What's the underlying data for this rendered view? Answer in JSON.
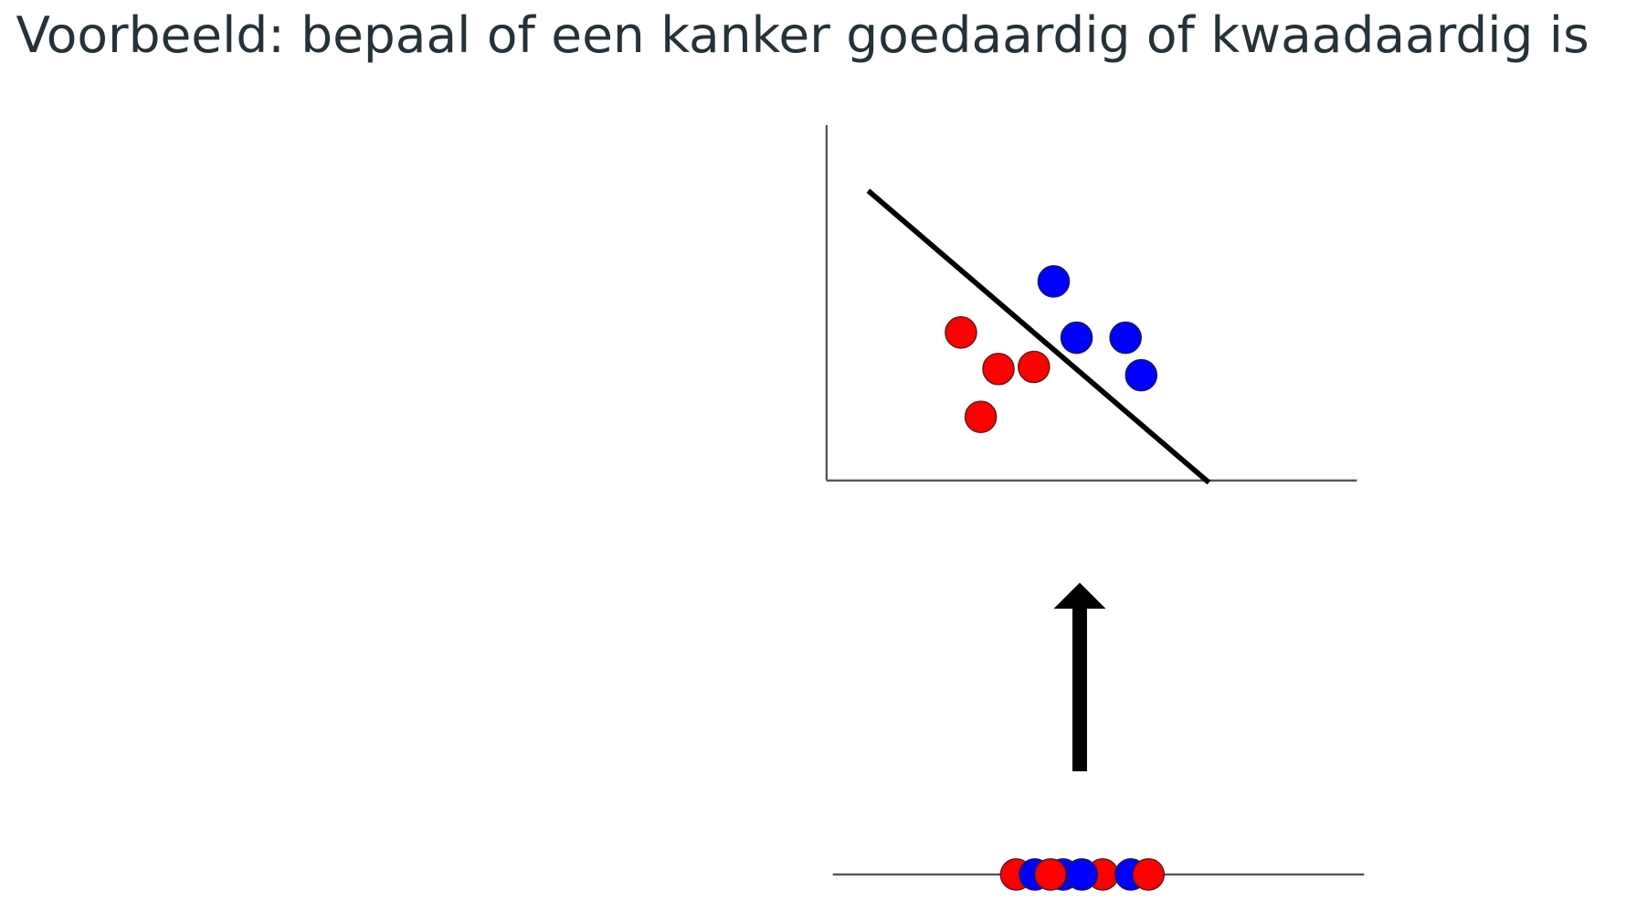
{
  "header": {
    "title": "Voorbeeld: bepaal of een kanker goedaardig of kwaadaardig is"
  }
}
